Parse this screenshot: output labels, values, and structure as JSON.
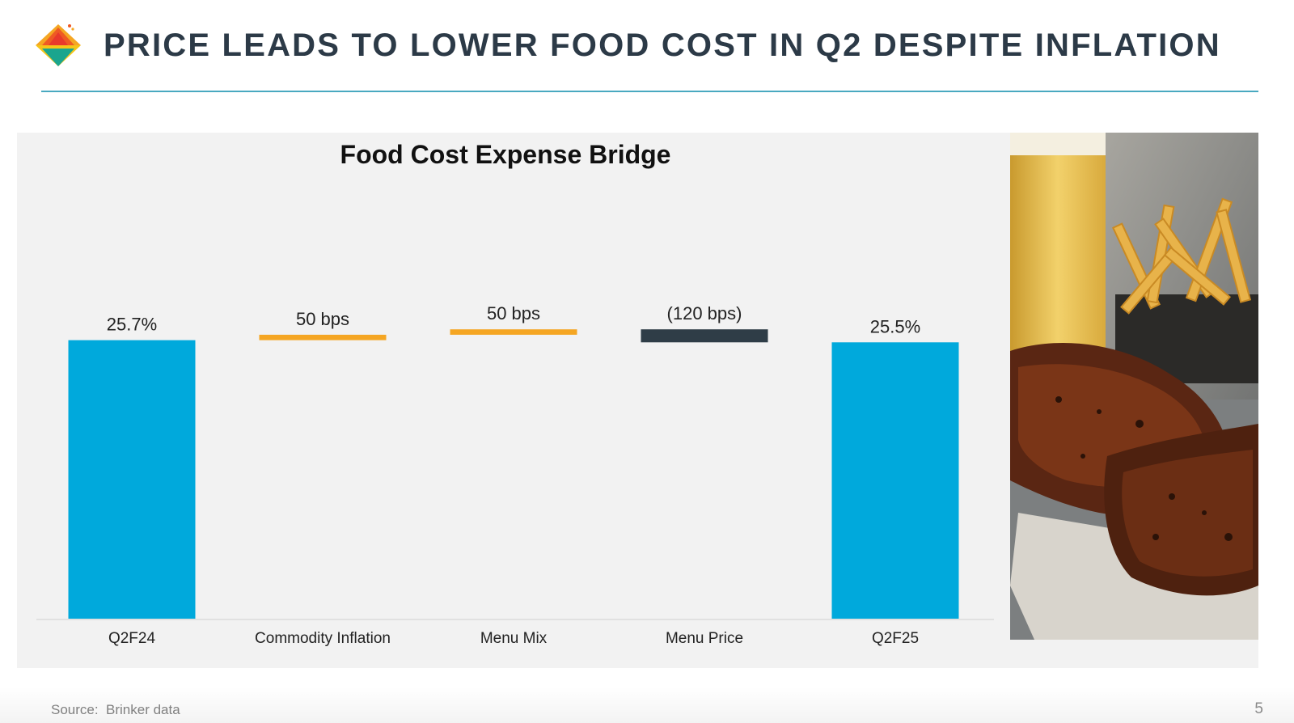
{
  "slide": {
    "title": "PRICE LEADS TO LOWER FOOD COST IN Q2 DESPITE INFLATION",
    "source": "Source:  Brinker data",
    "page_number": "5"
  },
  "colors": {
    "total_bar": "#00a9dc",
    "increase_bar": "#f5a623",
    "decrease_bar": "#2f3d47",
    "title": "#2c3a47",
    "rule": "#49a9c0",
    "panel": "#f2f2f2"
  },
  "chart_data": {
    "type": "bar",
    "subtype": "waterfall",
    "title": "Food Cost Expense Bridge",
    "unit": "percent of sales",
    "categories": [
      "Q2F24",
      "Commodity Inflation",
      "Menu Mix",
      "Menu Price",
      "Q2F25"
    ],
    "bars": [
      {
        "category": "Q2F24",
        "kind": "total",
        "start": 0,
        "end": 25.7,
        "label": "25.7%"
      },
      {
        "category": "Commodity Inflation",
        "kind": "increase",
        "start": 25.7,
        "end": 26.2,
        "label": "50 bps"
      },
      {
        "category": "Menu Mix",
        "kind": "increase",
        "start": 26.2,
        "end": 26.7,
        "label": "50 bps"
      },
      {
        "category": "Menu Price",
        "kind": "decrease",
        "start": 26.7,
        "end": 25.5,
        "label": "(120 bps)"
      },
      {
        "category": "Q2F25",
        "kind": "total",
        "start": 0,
        "end": 25.5,
        "label": "25.5%"
      }
    ],
    "grid": false,
    "legend": "none"
  }
}
